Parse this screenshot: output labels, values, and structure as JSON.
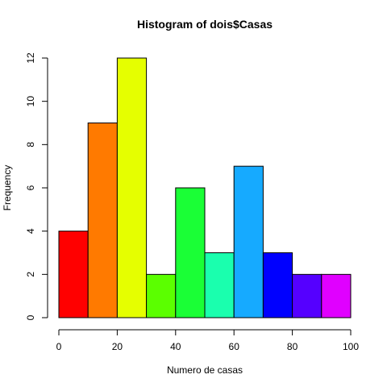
{
  "chart_data": {
    "type": "bar",
    "subtype": "histogram",
    "title": "Histogram of dois$Casas",
    "xlabel": "Numero de casas",
    "ylabel": "Frequency",
    "bins": [
      {
        "from": 0,
        "to": 10,
        "count": 4,
        "color": "#FF0000"
      },
      {
        "from": 10,
        "to": 20,
        "count": 9,
        "color": "#FF7A00"
      },
      {
        "from": 20,
        "to": 30,
        "count": 12,
        "color": "#E5FF00"
      },
      {
        "from": 30,
        "to": 40,
        "count": 2,
        "color": "#5BFF00"
      },
      {
        "from": 40,
        "to": 50,
        "count": 6,
        "color": "#1AFF36"
      },
      {
        "from": 50,
        "to": 60,
        "count": 3,
        "color": "#1AFFAE"
      },
      {
        "from": 60,
        "to": 70,
        "count": 7,
        "color": "#16AAFF"
      },
      {
        "from": 70,
        "to": 80,
        "count": 3,
        "color": "#0000FF"
      },
      {
        "from": 80,
        "to": 90,
        "count": 2,
        "color": "#5500FF"
      },
      {
        "from": 90,
        "to": 100,
        "count": 2,
        "color": "#E000FF"
      }
    ],
    "xlim": [
      0,
      100
    ],
    "ylim": [
      0,
      12
    ],
    "xticks": [
      "0",
      "20",
      "40",
      "60",
      "80",
      "100"
    ],
    "yticks": [
      "0",
      "2",
      "4",
      "6",
      "8",
      "10",
      "12"
    ],
    "grid": false,
    "legend": "none"
  }
}
